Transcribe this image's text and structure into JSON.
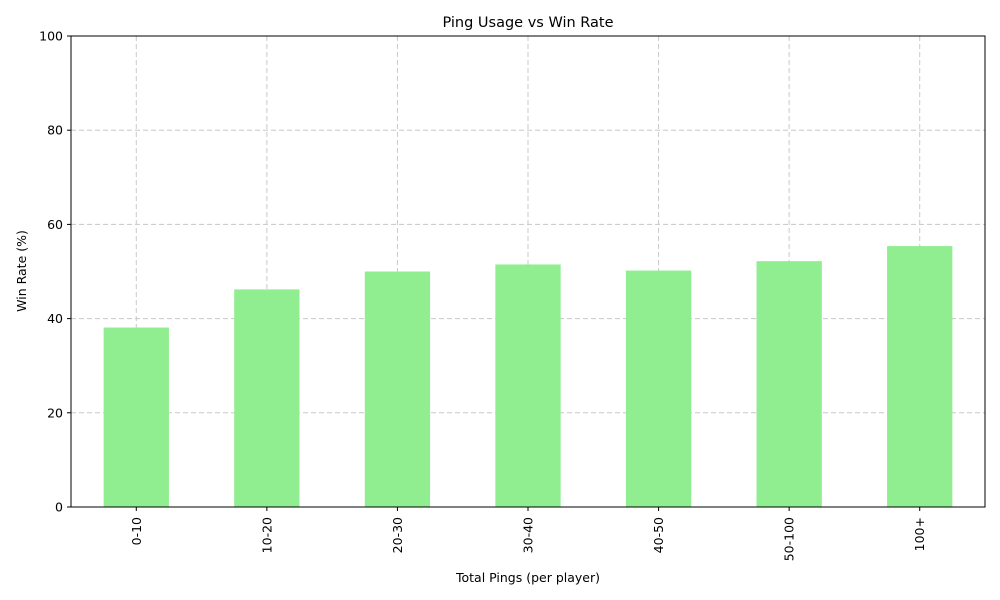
{
  "chart_data": {
    "type": "bar",
    "title": "Ping Usage vs Win Rate",
    "xlabel": "Total Pings (per player)",
    "ylabel": "Win Rate (%)",
    "categories": [
      "0-10",
      "10-20",
      "20-30",
      "30-40",
      "40-50",
      "50-100",
      "100+"
    ],
    "values": [
      38.1,
      46.2,
      50.0,
      51.5,
      50.2,
      52.2,
      55.4
    ],
    "ylim": [
      0,
      100
    ],
    "yticks": [
      0,
      20,
      40,
      60,
      80,
      100
    ],
    "grid": true,
    "bar_color": "#90ee90"
  }
}
